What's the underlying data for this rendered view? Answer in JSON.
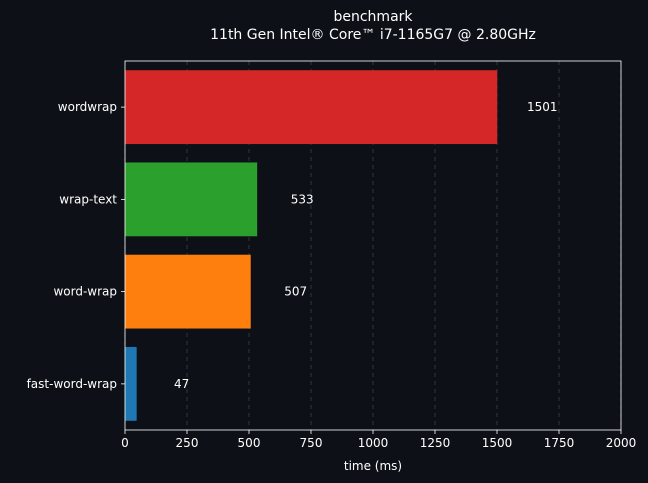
{
  "chart_data": {
    "type": "bar",
    "orientation": "horizontal",
    "title": "benchmark",
    "subtitle": "11th Gen Intel® Core™ i7-1165G7 @ 2.80GHz",
    "xlabel": "time (ms)",
    "ylabel": "",
    "xlim": [
      0,
      2000
    ],
    "x_ticks": [
      0,
      250,
      500,
      750,
      1000,
      1250,
      1500,
      1750,
      2000
    ],
    "grid": "vertical dashed",
    "categories": [
      "wordwrap",
      "wrap-text",
      "word-wrap",
      "fast-word-wrap"
    ],
    "values": [
      1501,
      533,
      507,
      47
    ],
    "value_labels": [
      "1501",
      "533",
      "507",
      "47"
    ],
    "colors": [
      "#d62728",
      "#2ca02c",
      "#ff7f0e",
      "#1f77b4"
    ]
  },
  "style": {
    "background": "#0d1117",
    "foreground": "#ffffff",
    "grid_color": "#3a3f47"
  }
}
